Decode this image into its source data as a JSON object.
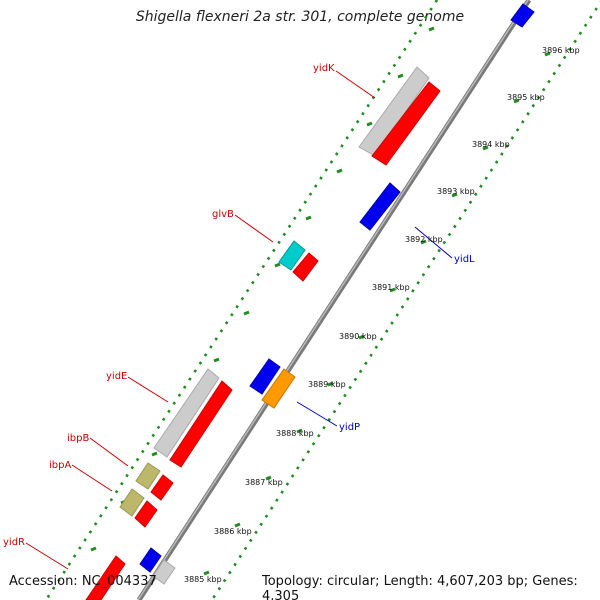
{
  "title": "Shigella flexneri 2a str. 301, complete genome",
  "accession": "Accession: NC_004337",
  "summary": "Topology: circular; Length: 4,607,203 bp; Genes: 4,305",
  "ticks": [
    {
      "label": "3885 kbp"
    },
    {
      "label": "3886 kbp"
    },
    {
      "label": "3887 kbp"
    },
    {
      "label": "3888 kbp"
    },
    {
      "label": "3889 kbp"
    },
    {
      "label": "3890 kbp"
    },
    {
      "label": "3891 kbp"
    },
    {
      "label": "3892 kbp"
    },
    {
      "label": "3893 kbp"
    },
    {
      "label": "3894 kbp"
    },
    {
      "label": "3895 kbp"
    },
    {
      "label": "3896 kbp"
    }
  ],
  "genes": [
    {
      "name": "yidK",
      "color": "#cc0000"
    },
    {
      "name": "glvB",
      "color": "#cc0000"
    },
    {
      "name": "yidE",
      "color": "#cc0000"
    },
    {
      "name": "ibpB",
      "color": "#cc0000"
    },
    {
      "name": "ibpA",
      "color": "#cc0000"
    },
    {
      "name": "yidR",
      "color": "#cc0000"
    },
    {
      "name": "yidL",
      "color": "#0000cc"
    },
    {
      "name": "yidP",
      "color": "#0000cc"
    }
  ],
  "colors": {
    "backbone": "#8c8c8c",
    "ruler_dots": "#228b22",
    "gene_red": "#ff0000",
    "gene_blue": "#0000ee",
    "gene_grey": "#cccccc",
    "gene_khaki": "#bdb76b",
    "gene_cyan": "#00cccc",
    "gene_orange": "#ff9900"
  }
}
